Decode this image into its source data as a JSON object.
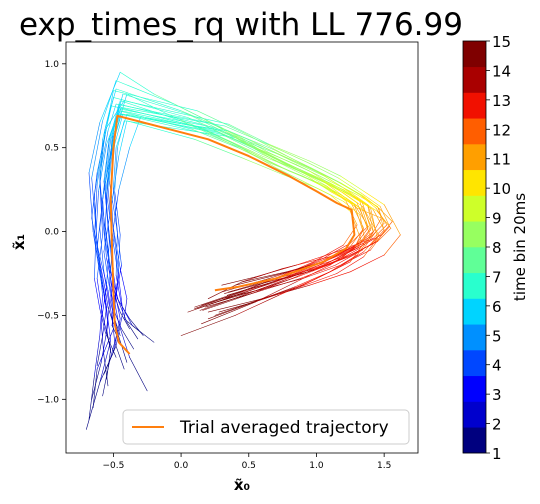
{
  "chart_data": {
    "type": "line",
    "title": "exp_times_rq with LL 776.99",
    "xlabel": "x̃₀",
    "ylabel": "x̃₁",
    "xlim": [
      -0.85,
      1.75
    ],
    "ylim": [
      -1.32,
      1.13
    ],
    "xticks": [
      -0.5,
      0.0,
      0.5,
      1.0,
      1.5
    ],
    "yticks": [
      -1.0,
      -0.5,
      0.0,
      0.5,
      1.0
    ],
    "xtick_labels": [
      "−0.5",
      "0.0",
      "0.5",
      "1.0",
      "1.5"
    ],
    "ytick_labels": [
      "−1.0",
      "−0.5",
      "0.0",
      "0.5",
      "1.0"
    ],
    "grid": false,
    "legend": {
      "position": "bottom-right",
      "label": "Trial averaged trajectory",
      "color": "#ff7f0e"
    },
    "time_bins": [
      1,
      2,
      3,
      4,
      5,
      6,
      7,
      8,
      9,
      10,
      11,
      12,
      13,
      14,
      15
    ],
    "colorbar": {
      "label": "time bin 20ms",
      "tick_labels": [
        "1",
        "2",
        "3",
        "4",
        "5",
        "6",
        "7",
        "8",
        "9",
        "10",
        "11",
        "12",
        "13",
        "14",
        "15"
      ],
      "colors": [
        "#00007f",
        "#0000cd",
        "#0000ff",
        "#0047ff",
        "#0090ff",
        "#00d4ff",
        "#29ffce",
        "#60ff97",
        "#97ff60",
        "#ceff29",
        "#ffe500",
        "#ff9f00",
        "#ff5e00",
        "#f11000",
        "#a90000",
        "#7f0000"
      ]
    },
    "trial_averaged_trajectory": {
      "x": [
        -0.38,
        -0.46,
        -0.49,
        -0.5,
        -0.51,
        -0.52,
        -0.5,
        -0.47,
        0.2,
        0.5,
        0.8,
        1.0,
        1.15,
        1.26,
        1.28,
        1.22,
        1.05,
        0.7,
        0.42,
        0.25
      ],
      "y": [
        -0.73,
        -0.66,
        -0.55,
        -0.35,
        -0.1,
        0.2,
        0.5,
        0.69,
        0.55,
        0.45,
        0.33,
        0.24,
        0.17,
        0.13,
        -0.02,
        -0.1,
        -0.18,
        -0.28,
        -0.33,
        -0.35
      ]
    },
    "single_trials": [
      {
        "x": [
          -0.7,
          -0.6,
          -0.52,
          -0.56,
          -0.62,
          -0.57,
          -0.48,
          -0.4,
          -0.1,
          0.25,
          0.6,
          0.95,
          1.2,
          1.38,
          1.42,
          1.3,
          1.1,
          0.75,
          0.45,
          0.2
        ],
        "y": [
          -1.18,
          -0.9,
          -0.65,
          -0.4,
          -0.1,
          0.25,
          0.6,
          0.82,
          0.7,
          0.58,
          0.45,
          0.34,
          0.25,
          0.15,
          0.0,
          -0.08,
          -0.15,
          -0.22,
          -0.3,
          -0.4
        ]
      },
      {
        "x": [
          -0.25,
          -0.38,
          -0.46,
          -0.52,
          -0.55,
          -0.6,
          -0.58,
          -0.52,
          0.1,
          0.4,
          0.7,
          0.9,
          1.1,
          1.25,
          1.33,
          1.2,
          0.95,
          0.7,
          0.4,
          0.05
        ],
        "y": [
          -0.95,
          -0.75,
          -0.55,
          -0.3,
          -0.05,
          0.28,
          0.55,
          0.75,
          0.63,
          0.52,
          0.38,
          0.3,
          0.22,
          0.12,
          -0.05,
          -0.15,
          -0.22,
          -0.3,
          -0.38,
          -0.48
        ]
      },
      {
        "x": [
          -0.45,
          -0.5,
          -0.48,
          -0.44,
          -0.48,
          -0.53,
          -0.5,
          -0.44,
          0.25,
          0.55,
          0.85,
          1.1,
          1.3,
          1.45,
          1.5,
          1.38,
          1.15,
          0.85,
          0.55,
          0.3
        ],
        "y": [
          -0.62,
          -0.5,
          -0.38,
          -0.2,
          0.05,
          0.3,
          0.58,
          0.72,
          0.6,
          0.5,
          0.4,
          0.3,
          0.22,
          0.15,
          0.05,
          -0.05,
          -0.12,
          -0.2,
          -0.27,
          -0.32
        ]
      },
      {
        "x": [
          -0.62,
          -0.58,
          -0.55,
          -0.6,
          -0.65,
          -0.68,
          -0.6,
          -0.45,
          -0.2,
          0.15,
          0.5,
          0.8,
          1.05,
          1.25,
          1.35,
          1.28,
          1.1,
          0.85,
          0.55,
          0.15
        ],
        "y": [
          -0.8,
          -0.62,
          -0.45,
          -0.25,
          0.0,
          0.35,
          0.65,
          0.95,
          0.82,
          0.68,
          0.52,
          0.4,
          0.3,
          0.18,
          0.02,
          -0.1,
          -0.2,
          -0.3,
          -0.42,
          -0.55
        ]
      },
      {
        "x": [
          -0.3,
          -0.42,
          -0.4,
          -0.45,
          -0.5,
          -0.46,
          -0.38,
          -0.3,
          0.3,
          0.6,
          0.9,
          1.12,
          1.3,
          1.45,
          1.55,
          1.45,
          1.25,
          1.0,
          0.7,
          0.35
        ],
        "y": [
          -0.6,
          -0.52,
          -0.4,
          -0.22,
          0.02,
          0.25,
          0.5,
          0.68,
          0.58,
          0.46,
          0.35,
          0.27,
          0.2,
          0.12,
          0.02,
          -0.06,
          -0.14,
          -0.22,
          -0.28,
          -0.36
        ]
      },
      {
        "x": [
          -0.55,
          -0.52,
          -0.58,
          -0.62,
          -0.58,
          -0.6,
          -0.56,
          -0.48,
          0.0,
          0.35,
          0.65,
          0.95,
          1.15,
          1.32,
          1.38,
          1.25,
          1.05,
          0.8,
          0.5,
          0.1
        ],
        "y": [
          -0.88,
          -0.7,
          -0.5,
          -0.28,
          -0.02,
          0.3,
          0.62,
          0.85,
          0.72,
          0.6,
          0.47,
          0.36,
          0.26,
          0.18,
          0.03,
          -0.07,
          -0.16,
          -0.25,
          -0.34,
          -0.45
        ]
      },
      {
        "x": [
          -0.4,
          -0.47,
          -0.52,
          -0.5,
          -0.54,
          -0.56,
          -0.52,
          -0.46,
          0.15,
          0.45,
          0.75,
          1.0,
          1.18,
          1.3,
          1.48,
          1.4,
          1.2,
          0.95,
          0.65,
          0.3
        ],
        "y": [
          -0.78,
          -0.6,
          -0.42,
          -0.22,
          0.05,
          0.28,
          0.55,
          0.74,
          0.62,
          0.5,
          0.38,
          0.29,
          0.21,
          0.14,
          0.08,
          -0.03,
          -0.12,
          -0.2,
          -0.28,
          -0.36
        ]
      },
      {
        "x": [
          -0.65,
          -0.62,
          -0.5,
          -0.54,
          -0.62,
          -0.64,
          -0.58,
          -0.5,
          0.05,
          0.4,
          0.7,
          0.95,
          1.1,
          1.28,
          1.4,
          1.3,
          1.05,
          0.75,
          0.45,
          0.15
        ],
        "y": [
          -1.05,
          -0.82,
          -0.58,
          -0.35,
          -0.08,
          0.22,
          0.52,
          0.8,
          0.68,
          0.56,
          0.42,
          0.32,
          0.24,
          0.16,
          0.01,
          -0.1,
          -0.2,
          -0.28,
          -0.36,
          -0.44
        ]
      },
      {
        "x": [
          -0.35,
          -0.44,
          -0.49,
          -0.53,
          -0.5,
          -0.55,
          -0.52,
          -0.44,
          0.2,
          0.5,
          0.8,
          1.05,
          1.22,
          1.36,
          1.46,
          1.35,
          1.15,
          0.9,
          0.6,
          0.25
        ],
        "y": [
          -0.7,
          -0.58,
          -0.48,
          -0.3,
          -0.05,
          0.22,
          0.48,
          0.7,
          0.58,
          0.48,
          0.36,
          0.28,
          0.2,
          0.12,
          -0.02,
          -0.12,
          -0.22,
          -0.32,
          -0.4,
          -0.5
        ]
      },
      {
        "x": [
          -0.5,
          -0.54,
          -0.56,
          -0.6,
          -0.66,
          -0.62,
          -0.55,
          -0.42,
          0.35,
          0.65,
          0.95,
          1.18,
          1.35,
          1.5,
          1.62,
          1.5,
          1.25,
          0.95,
          0.6,
          0.2
        ],
        "y": [
          -0.55,
          -0.45,
          -0.35,
          -0.18,
          0.08,
          0.35,
          0.62,
          0.78,
          0.64,
          0.52,
          0.42,
          0.33,
          0.24,
          0.16,
          -0.02,
          -0.14,
          -0.24,
          -0.32,
          -0.4,
          -0.48
        ]
      },
      {
        "x": [
          -0.58,
          -0.53,
          -0.47,
          -0.52,
          -0.57,
          -0.51,
          -0.46,
          -0.4,
          0.1,
          0.45,
          0.75,
          1.0,
          1.2,
          1.32,
          1.36,
          1.25,
          1.0,
          0.72,
          0.4,
          0.0
        ],
        "y": [
          -0.98,
          -0.78,
          -0.6,
          -0.38,
          -0.12,
          0.18,
          0.45,
          0.66,
          0.55,
          0.44,
          0.34,
          0.26,
          0.18,
          0.1,
          -0.06,
          -0.18,
          -0.28,
          -0.38,
          -0.5,
          -0.62
        ]
      },
      {
        "x": [
          -0.2,
          -0.36,
          -0.44,
          -0.48,
          -0.47,
          -0.5,
          -0.48,
          -0.4,
          0.3,
          0.62,
          0.92,
          1.15,
          1.32,
          1.44,
          1.52,
          1.42,
          1.22,
          0.98,
          0.7,
          0.4
        ],
        "y": [
          -0.66,
          -0.56,
          -0.44,
          -0.26,
          0.0,
          0.26,
          0.5,
          0.7,
          0.6,
          0.5,
          0.39,
          0.3,
          0.22,
          0.14,
          0.04,
          -0.04,
          -0.12,
          -0.2,
          -0.26,
          -0.32
        ]
      },
      {
        "x": [
          -0.68,
          -0.64,
          -0.6,
          -0.58,
          -0.62,
          -0.66,
          -0.58,
          -0.48,
          -0.05,
          0.3,
          0.6,
          0.88,
          1.08,
          1.22,
          1.3,
          1.2,
          0.98,
          0.72,
          0.44,
          0.1
        ],
        "y": [
          -1.12,
          -0.86,
          -0.62,
          -0.38,
          -0.06,
          0.32,
          0.66,
          0.9,
          0.76,
          0.62,
          0.48,
          0.36,
          0.27,
          0.18,
          0.04,
          -0.08,
          -0.18,
          -0.27,
          -0.36,
          -0.46
        ]
      },
      {
        "x": [
          -0.42,
          -0.49,
          -0.51,
          -0.47,
          -0.45,
          -0.49,
          -0.47,
          -0.42,
          0.4,
          0.72,
          1.0,
          1.2,
          1.35,
          1.46,
          1.56,
          1.48,
          1.3,
          1.05,
          0.78,
          0.45
        ],
        "y": [
          -0.82,
          -0.66,
          -0.5,
          -0.3,
          -0.02,
          0.24,
          0.5,
          0.66,
          0.56,
          0.46,
          0.36,
          0.28,
          0.21,
          0.14,
          0.06,
          -0.02,
          -0.1,
          -0.18,
          -0.24,
          -0.3
        ]
      },
      {
        "x": [
          -0.52,
          -0.55,
          -0.53,
          -0.57,
          -0.6,
          -0.57,
          -0.53,
          -0.46,
          0.15,
          0.48,
          0.78,
          1.02,
          1.2,
          1.34,
          1.42,
          1.32,
          1.12,
          0.86,
          0.56,
          0.22
        ],
        "y": [
          -0.72,
          -0.58,
          -0.44,
          -0.24,
          0.02,
          0.26,
          0.54,
          0.76,
          0.64,
          0.52,
          0.4,
          0.31,
          0.23,
          0.15,
          0.0,
          -0.1,
          -0.19,
          -0.27,
          -0.35,
          -0.43
        ]
      },
      {
        "x": [
          -0.6,
          -0.5,
          -0.45,
          -0.5,
          -0.56,
          -0.58,
          -0.52,
          -0.45,
          0.25,
          0.55,
          0.82,
          1.05,
          1.25,
          1.4,
          1.45,
          1.35,
          1.15,
          0.88,
          0.58,
          0.28
        ],
        "y": [
          -0.9,
          -0.72,
          -0.52,
          -0.32,
          -0.06,
          0.2,
          0.48,
          0.73,
          0.62,
          0.5,
          0.38,
          0.3,
          0.22,
          0.14,
          -0.04,
          -0.15,
          -0.25,
          -0.33,
          -0.41,
          -0.48
        ]
      },
      {
        "x": [
          -0.32,
          -0.4,
          -0.46,
          -0.52,
          -0.56,
          -0.54,
          -0.5,
          -0.43,
          0.05,
          0.38,
          0.68,
          0.96,
          1.16,
          1.3,
          1.38,
          1.28,
          1.05,
          0.78,
          0.48,
          0.12
        ],
        "y": [
          -0.64,
          -0.54,
          -0.42,
          -0.24,
          0.04,
          0.32,
          0.6,
          0.82,
          0.7,
          0.57,
          0.44,
          0.34,
          0.25,
          0.17,
          0.02,
          -0.09,
          -0.18,
          -0.27,
          -0.36,
          -0.46
        ]
      },
      {
        "x": [
          -0.48,
          -0.56,
          -0.6,
          -0.64,
          -0.63,
          -0.61,
          -0.55,
          -0.47,
          0.35,
          0.68,
          0.96,
          1.18,
          1.34,
          1.46,
          1.5,
          1.4,
          1.18,
          0.9,
          0.62,
          0.3
        ],
        "y": [
          -0.75,
          -0.6,
          -0.46,
          -0.28,
          -0.04,
          0.24,
          0.52,
          0.7,
          0.6,
          0.49,
          0.38,
          0.29,
          0.21,
          0.14,
          0.0,
          -0.11,
          -0.2,
          -0.28,
          -0.34,
          -0.4
        ]
      },
      {
        "x": [
          -0.57,
          -0.48,
          -0.43,
          -0.46,
          -0.51,
          -0.54,
          -0.51,
          -0.45,
          0.0,
          0.3,
          0.62,
          0.9,
          1.12,
          1.28,
          1.34,
          1.24,
          1.02,
          0.76,
          0.46,
          0.14
        ],
        "y": [
          -0.85,
          -0.68,
          -0.48,
          -0.28,
          -0.02,
          0.26,
          0.56,
          0.78,
          0.66,
          0.55,
          0.42,
          0.33,
          0.24,
          0.16,
          0.01,
          -0.1,
          -0.2,
          -0.29,
          -0.38,
          -0.47
        ]
      },
      {
        "x": [
          -0.38,
          -0.45,
          -0.5,
          -0.55,
          -0.58,
          -0.6,
          -0.54,
          -0.48,
          0.2,
          0.52,
          0.82,
          1.06,
          1.24,
          1.38,
          1.44,
          1.34,
          1.14,
          0.88,
          0.56,
          0.18
        ],
        "y": [
          -0.58,
          -0.48,
          -0.36,
          -0.16,
          0.08,
          0.34,
          0.6,
          0.76,
          0.65,
          0.54,
          0.42,
          0.33,
          0.24,
          0.16,
          0.0,
          -0.11,
          -0.2,
          -0.28,
          -0.36,
          -0.45
        ]
      },
      {
        "x": [
          -0.66,
          -0.59,
          -0.54,
          -0.58,
          -0.64,
          -0.62,
          -0.56,
          -0.5,
          0.12,
          0.46,
          0.76,
          1.02,
          1.2,
          1.34,
          1.4,
          1.3,
          1.08,
          0.82,
          0.52,
          0.16
        ],
        "y": [
          -1.0,
          -0.78,
          -0.55,
          -0.32,
          -0.04,
          0.28,
          0.58,
          0.84,
          0.72,
          0.59,
          0.46,
          0.35,
          0.26,
          0.17,
          0.02,
          -0.09,
          -0.19,
          -0.28,
          -0.37,
          -0.47
        ]
      },
      {
        "x": [
          -0.44,
          -0.51,
          -0.49,
          -0.46,
          -0.5,
          -0.52,
          -0.49,
          -0.43,
          0.28,
          0.58,
          0.88,
          1.1,
          1.28,
          1.42,
          1.5,
          1.4,
          1.2,
          0.94,
          0.64,
          0.32
        ],
        "y": [
          -0.68,
          -0.56,
          -0.42,
          -0.24,
          0.0,
          0.26,
          0.52,
          0.7,
          0.59,
          0.48,
          0.37,
          0.29,
          0.21,
          0.13,
          0.01,
          -0.08,
          -0.16,
          -0.24,
          -0.3,
          -0.37
        ]
      },
      {
        "x": [
          -0.54,
          -0.57,
          -0.59,
          -0.55,
          -0.53,
          -0.56,
          -0.51,
          -0.46,
          0.08,
          0.42,
          0.72,
          0.98,
          1.18,
          1.32,
          1.4,
          1.3,
          1.1,
          0.84,
          0.54,
          0.2
        ],
        "y": [
          -0.92,
          -0.74,
          -0.54,
          -0.32,
          -0.06,
          0.22,
          0.5,
          0.72,
          0.61,
          0.5,
          0.39,
          0.3,
          0.22,
          0.14,
          -0.03,
          -0.14,
          -0.24,
          -0.33,
          -0.42,
          -0.52
        ]
      },
      {
        "x": [
          -0.28,
          -0.38,
          -0.47,
          -0.51,
          -0.54,
          -0.57,
          -0.53,
          -0.44,
          0.32,
          0.64,
          0.94,
          1.16,
          1.33,
          1.47,
          1.54,
          1.44,
          1.24,
          0.98,
          0.68,
          0.34
        ],
        "y": [
          -0.62,
          -0.52,
          -0.4,
          -0.2,
          0.06,
          0.3,
          0.56,
          0.74,
          0.63,
          0.52,
          0.41,
          0.32,
          0.23,
          0.15,
          0.03,
          -0.06,
          -0.15,
          -0.23,
          -0.3,
          -0.38
        ]
      }
    ]
  }
}
